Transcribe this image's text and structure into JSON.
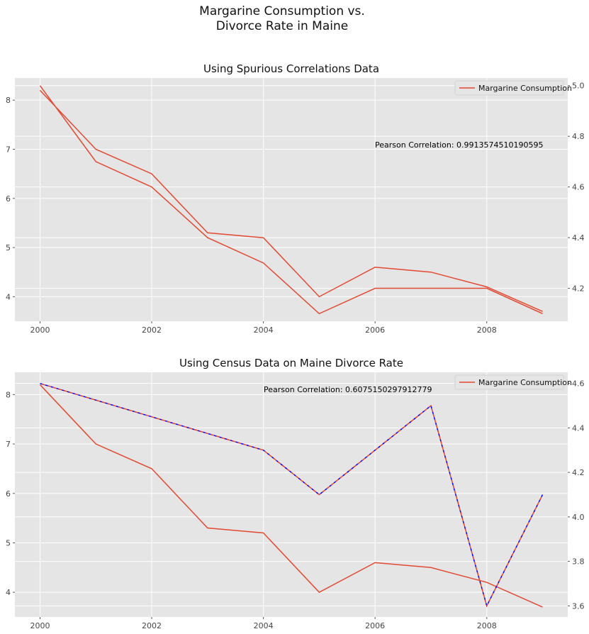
{
  "figure": {
    "suptitle_line1": "Margarine Consumption vs.",
    "suptitle_line2": "Divorce Rate in Maine"
  },
  "colors": {
    "margarine": "#E24A33",
    "divorce_census": "#0000FF",
    "background": "#E5E5E5",
    "grid": "#FFFFFF"
  },
  "chart_data": [
    {
      "type": "line",
      "title": "Using Spurious Correlations Data",
      "x": [
        2000,
        2001,
        2002,
        2003,
        2004,
        2005,
        2006,
        2007,
        2008,
        2009
      ],
      "xticks": [
        "2000",
        "2002",
        "2004",
        "2006",
        "2008"
      ],
      "xlim": [
        1999.55,
        2009.45
      ],
      "yleft": {
        "ylim": [
          3.5,
          8.45
        ],
        "ticks": [
          "4",
          "5",
          "6",
          "7",
          "8"
        ]
      },
      "yright": {
        "ylim": [
          4.07,
          5.03
        ],
        "ticks": [
          "4.2",
          "4.4",
          "4.6",
          "4.8",
          "5.0"
        ]
      },
      "legend": {
        "label": "Margarine Consumption",
        "placement": "upper right"
      },
      "annotation": "Pearson Correlation: 0.9913574510190595",
      "series": [
        {
          "name": "Margarine Consumption",
          "axis": "left",
          "style": "solid",
          "values": [
            8.2,
            7.0,
            6.5,
            5.3,
            5.2,
            4.0,
            4.6,
            4.5,
            4.2,
            3.7
          ]
        },
        {
          "axis": "right",
          "style": "solid",
          "values": [
            5.0,
            4.7,
            4.6,
            4.4,
            4.3,
            4.1,
            4.2,
            4.2,
            4.2,
            4.1
          ]
        }
      ],
      "grid": true
    },
    {
      "type": "line",
      "title": "Using Census Data on Maine Divorce Rate",
      "x": [
        2000,
        2001,
        2002,
        2003,
        2004,
        2005,
        2006,
        2007,
        2008,
        2009
      ],
      "xticks": [
        "2000",
        "2002",
        "2004",
        "2006",
        "2008"
      ],
      "xlim": [
        1999.55,
        2009.45
      ],
      "yleft": {
        "ylim": [
          3.5,
          8.45
        ],
        "ticks": [
          "4",
          "5",
          "6",
          "7",
          "8"
        ]
      },
      "yright": {
        "ylim": [
          3.55,
          4.65
        ],
        "ticks": [
          "3.6",
          "3.8",
          "4.0",
          "4.2",
          "4.4",
          "4.6"
        ]
      },
      "legend": {
        "label": "Margarine Consumption",
        "placement": "upper right"
      },
      "annotation": "Pearson Correlation: 0.6075150297912779",
      "series": [
        {
          "name": "Margarine Consumption",
          "axis": "left",
          "style": "solid",
          "values": [
            8.2,
            7.0,
            6.5,
            5.3,
            5.2,
            4.0,
            4.6,
            4.5,
            4.2,
            3.7
          ]
        },
        {
          "axis": "right",
          "style": "dashed-interpolated",
          "x": [
            2000,
            2004,
            2005,
            2007,
            2008,
            2009
          ],
          "values": [
            4.6,
            4.3,
            4.1,
            4.5,
            3.6,
            4.1
          ]
        }
      ],
      "grid": true
    }
  ]
}
